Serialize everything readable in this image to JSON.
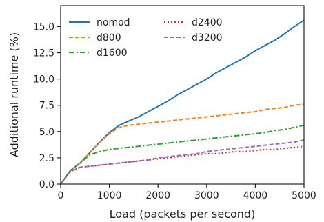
{
  "chart_data": {
    "type": "line",
    "xlabel": "Load (packets per second)",
    "ylabel": "Additional runtime (%)",
    "xlim": [
      0,
      5000
    ],
    "ylim": [
      0,
      17
    ],
    "xticks": [
      0,
      1000,
      2000,
      3000,
      4000,
      5000
    ],
    "yticks": [
      0.0,
      2.5,
      5.0,
      7.5,
      10.0,
      12.5,
      15.0
    ],
    "xtick_labels": [
      "0",
      "1000",
      "2000",
      "3000",
      "4000",
      "5000"
    ],
    "ytick_labels": [
      "0.0",
      "2.5",
      "5.0",
      "7.5",
      "10.0",
      "12.5",
      "15.0"
    ],
    "grid": false,
    "legend": "top-left, two columns",
    "series": [
      {
        "name": "nomod",
        "color": "#1f77b4",
        "dash": "solid",
        "x": [
          0,
          200,
          400,
          600,
          800,
          1000,
          1200,
          1400,
          1600,
          1800,
          2000,
          2200,
          2400,
          2600,
          2800,
          3000,
          3200,
          3400,
          3600,
          3800,
          4000,
          4200,
          4400,
          4600,
          4800,
          5000
        ],
        "y": [
          0.0,
          1.3,
          2.0,
          3.0,
          4.0,
          4.9,
          5.6,
          6.0,
          6.4,
          6.9,
          7.4,
          7.9,
          8.5,
          9.0,
          9.5,
          10.0,
          10.6,
          11.1,
          11.6,
          12.1,
          12.7,
          13.2,
          13.7,
          14.3,
          15.0,
          15.6
        ]
      },
      {
        "name": "d800",
        "color": "#ff7f0e",
        "dash": "dashed",
        "x": [
          0,
          200,
          400,
          600,
          800,
          1000,
          1200,
          1400,
          1600,
          1800,
          2000,
          2200,
          2400,
          2600,
          2800,
          3000,
          3200,
          3400,
          3600,
          3800,
          4000,
          4200,
          4400,
          4600,
          4800,
          5000
        ],
        "y": [
          0.0,
          1.3,
          2.0,
          3.0,
          4.0,
          4.8,
          5.4,
          5.6,
          5.7,
          5.8,
          5.9,
          6.0,
          6.1,
          6.2,
          6.3,
          6.4,
          6.5,
          6.6,
          6.7,
          6.8,
          6.9,
          7.1,
          7.2,
          7.3,
          7.5,
          7.6
        ]
      },
      {
        "name": "d1600",
        "color": "#2ca02c",
        "dash": "dashdot",
        "x": [
          0,
          200,
          400,
          600,
          800,
          1000,
          1200,
          1400,
          1600,
          1800,
          2000,
          2200,
          2400,
          2600,
          2800,
          3000,
          3200,
          3400,
          3600,
          3800,
          4000,
          4200,
          4400,
          4600,
          4800,
          5000
        ],
        "y": [
          0.0,
          1.3,
          2.0,
          2.8,
          3.1,
          3.3,
          3.4,
          3.5,
          3.6,
          3.7,
          3.8,
          3.9,
          4.0,
          4.1,
          4.2,
          4.3,
          4.4,
          4.5,
          4.6,
          4.7,
          4.8,
          4.9,
          5.1,
          5.2,
          5.4,
          5.6
        ]
      },
      {
        "name": "d2400",
        "color": "#d62728",
        "dash": "dotted",
        "x": [
          0,
          200,
          400,
          600,
          800,
          1000,
          1200,
          1400,
          1600,
          1800,
          2000,
          2200,
          2400,
          2600,
          2800,
          3000,
          3200,
          3400,
          3600,
          3800,
          4000,
          4200,
          4400,
          4600,
          4800,
          5000
        ],
        "y": [
          0.0,
          1.2,
          1.6,
          1.7,
          1.8,
          1.9,
          2.0,
          2.1,
          2.2,
          2.3,
          2.4,
          2.5,
          2.6,
          2.7,
          2.8,
          2.9,
          2.9,
          3.0,
          3.1,
          3.1,
          3.2,
          3.3,
          3.3,
          3.4,
          3.5,
          3.6
        ]
      },
      {
        "name": "d3200",
        "color": "#9467bd",
        "dash": "dashed",
        "x": [
          0,
          200,
          400,
          600,
          800,
          1000,
          1200,
          1400,
          1600,
          1800,
          2000,
          2200,
          2400,
          2600,
          2800,
          3000,
          3200,
          3400,
          3600,
          3800,
          4000,
          4200,
          4400,
          4600,
          4800,
          5000
        ],
        "y": [
          0.0,
          1.2,
          1.6,
          1.7,
          1.8,
          1.9,
          2.0,
          2.1,
          2.2,
          2.3,
          2.5,
          2.6,
          2.7,
          2.8,
          2.9,
          3.1,
          3.2,
          3.3,
          3.4,
          3.5,
          3.6,
          3.7,
          3.8,
          3.9,
          4.0,
          4.2
        ]
      }
    ]
  }
}
